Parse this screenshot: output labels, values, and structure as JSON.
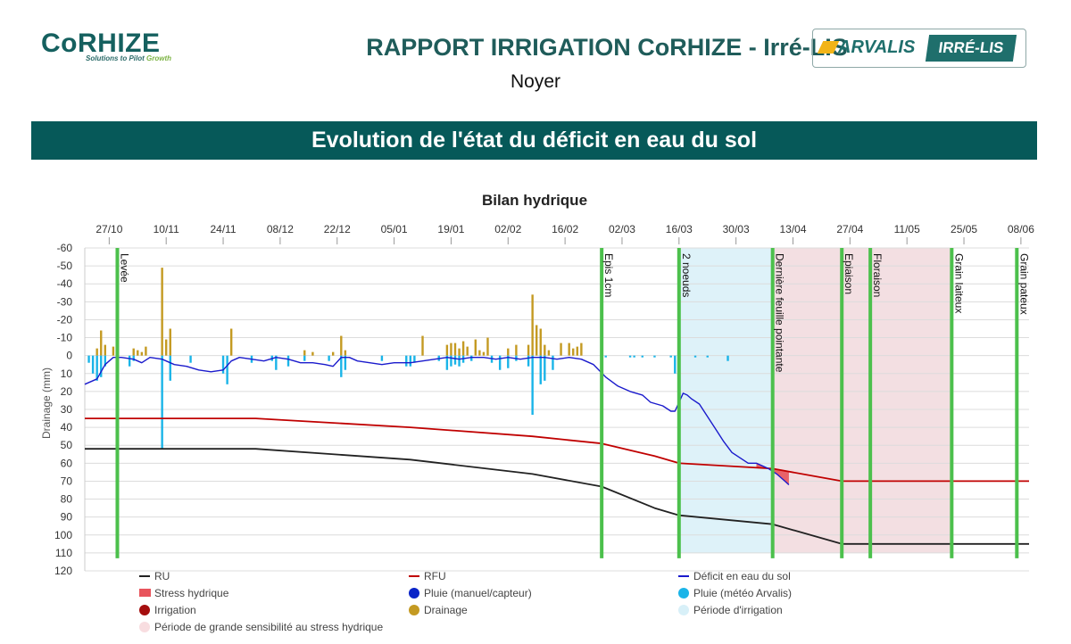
{
  "header": {
    "left_logo": "CoRHIZE",
    "left_tagline_pre": "Solutions to Pilot",
    "left_tagline_accent": "Growth",
    "title": "RAPPORT IRRIGATION CoRHIZE - Irré-LIS",
    "subtitle": "Noyer",
    "right_logo_arvalis": "ARVALIS",
    "right_logo_irrelis": "IRRÉ-LIS"
  },
  "banner": {
    "title": "Evolution de l'état du déficit en eau du sol"
  },
  "chart_data": {
    "type": "line",
    "title": "Bilan hydrique",
    "ylabel": "Drainage (mm)",
    "ylim": [
      -60,
      120
    ],
    "y_inverted": true,
    "yticks": [
      -60,
      -50,
      -40,
      -30,
      -20,
      -10,
      0,
      10,
      20,
      30,
      40,
      50,
      60,
      70,
      80,
      90,
      100,
      110,
      120
    ],
    "xlim_days": [
      0,
      232
    ],
    "x_ticks": [
      {
        "label": "27/10",
        "day": 6
      },
      {
        "label": "10/11",
        "day": 20
      },
      {
        "label": "24/11",
        "day": 34
      },
      {
        "label": "08/12",
        "day": 48
      },
      {
        "label": "22/12",
        "day": 62
      },
      {
        "label": "05/01",
        "day": 76
      },
      {
        "label": "19/01",
        "day": 90
      },
      {
        "label": "02/02",
        "day": 104
      },
      {
        "label": "16/02",
        "day": 118
      },
      {
        "label": "02/03",
        "day": 132
      },
      {
        "label": "16/03",
        "day": 146
      },
      {
        "label": "30/03",
        "day": 160
      },
      {
        "label": "13/04",
        "day": 174
      },
      {
        "label": "27/04",
        "day": 188
      },
      {
        "label": "11/05",
        "day": 202
      },
      {
        "label": "25/05",
        "day": 216
      },
      {
        "label": "08/06",
        "day": 230
      }
    ],
    "stages": [
      {
        "label": "Levée",
        "day": 8
      },
      {
        "label": "Epis 1cm",
        "day": 127
      },
      {
        "label": "2 noeuds",
        "day": 146
      },
      {
        "label": "Dernière feuille pointante",
        "day": 169
      },
      {
        "label": "Epiaison",
        "day": 186
      },
      {
        "label": "Floraison",
        "day": 193
      },
      {
        "label": "Grain laiteux",
        "day": 213
      },
      {
        "label": "Grain pateux",
        "day": 229
      }
    ],
    "periods": [
      {
        "name": "Période d'irrigation",
        "start": 146,
        "end": 169
      },
      {
        "name": "Période de grande sensibilité au stress hydrique",
        "start": 169,
        "end": 213
      }
    ],
    "series": [
      {
        "name": "RU",
        "color": "#222222",
        "points": [
          [
            0,
            52
          ],
          [
            42,
            52
          ],
          [
            80,
            58
          ],
          [
            110,
            66
          ],
          [
            127,
            73
          ],
          [
            140,
            85
          ],
          [
            146,
            89
          ],
          [
            169,
            94
          ],
          [
            186,
            105
          ],
          [
            232,
            105
          ]
        ]
      },
      {
        "name": "RFU",
        "color": "#c00000",
        "points": [
          [
            0,
            35
          ],
          [
            42,
            35
          ],
          [
            80,
            40
          ],
          [
            110,
            45
          ],
          [
            127,
            49
          ],
          [
            140,
            56
          ],
          [
            146,
            60
          ],
          [
            169,
            63
          ],
          [
            186,
            70
          ],
          [
            232,
            70
          ]
        ]
      },
      {
        "name": "Déficit en eau du sol",
        "color": "#1a1acc",
        "points": [
          [
            0,
            16
          ],
          [
            3,
            13
          ],
          [
            5,
            5
          ],
          [
            7,
            1
          ],
          [
            9,
            1
          ],
          [
            12,
            2
          ],
          [
            14,
            4
          ],
          [
            16,
            1
          ],
          [
            19,
            2
          ],
          [
            22,
            5
          ],
          [
            25,
            6
          ],
          [
            28,
            8
          ],
          [
            31,
            9
          ],
          [
            34,
            8
          ],
          [
            36,
            3
          ],
          [
            38,
            1
          ],
          [
            41,
            2
          ],
          [
            44,
            3
          ],
          [
            47,
            1
          ],
          [
            50,
            2
          ],
          [
            53,
            4
          ],
          [
            56,
            4
          ],
          [
            59,
            5
          ],
          [
            61,
            6
          ],
          [
            63,
            1
          ],
          [
            65,
            1
          ],
          [
            67,
            3
          ],
          [
            70,
            4
          ],
          [
            73,
            5
          ],
          [
            76,
            4
          ],
          [
            80,
            4
          ],
          [
            83,
            3
          ],
          [
            86,
            2
          ],
          [
            89,
            1
          ],
          [
            92,
            2
          ],
          [
            95,
            1
          ],
          [
            98,
            1
          ],
          [
            101,
            2
          ],
          [
            104,
            1
          ],
          [
            107,
            2
          ],
          [
            110,
            1
          ],
          [
            113,
            1
          ],
          [
            116,
            2
          ],
          [
            119,
            1
          ],
          [
            122,
            2
          ],
          [
            125,
            5
          ],
          [
            128,
            12
          ],
          [
            131,
            17
          ],
          [
            134,
            20
          ],
          [
            137,
            22
          ],
          [
            139,
            26
          ],
          [
            142,
            28
          ],
          [
            144,
            31
          ],
          [
            145,
            31
          ],
          [
            147,
            21
          ],
          [
            148,
            22
          ],
          [
            149,
            24
          ],
          [
            151,
            27
          ],
          [
            153,
            34
          ],
          [
            155,
            41
          ],
          [
            157,
            48
          ],
          [
            159,
            54
          ],
          [
            161,
            57
          ],
          [
            163,
            60
          ],
          [
            165,
            60
          ],
          [
            168,
            63
          ],
          [
            170,
            66
          ],
          [
            172,
            70
          ],
          [
            173,
            72
          ]
        ]
      }
    ],
    "stress_hydrique": {
      "color": "#e8545c",
      "range": [
        165,
        173
      ]
    },
    "rain_meteo_bars": [
      [
        1,
        4
      ],
      [
        2,
        10
      ],
      [
        3,
        14
      ],
      [
        4,
        12
      ],
      [
        5,
        6
      ],
      [
        11,
        6
      ],
      [
        12,
        3
      ],
      [
        19,
        52
      ],
      [
        21,
        14
      ],
      [
        26,
        4
      ],
      [
        34,
        10
      ],
      [
        35,
        16
      ],
      [
        41,
        4
      ],
      [
        46,
        3
      ],
      [
        47,
        8
      ],
      [
        50,
        6
      ],
      [
        54,
        3
      ],
      [
        60,
        3
      ],
      [
        63,
        12
      ],
      [
        64,
        8
      ],
      [
        73,
        3
      ],
      [
        79,
        6
      ],
      [
        80,
        6
      ],
      [
        81,
        4
      ],
      [
        87,
        3
      ],
      [
        89,
        8
      ],
      [
        90,
        6
      ],
      [
        91,
        5
      ],
      [
        92,
        6
      ],
      [
        93,
        4
      ],
      [
        95,
        3
      ],
      [
        100,
        4
      ],
      [
        102,
        8
      ],
      [
        104,
        7
      ],
      [
        106,
        3
      ],
      [
        109,
        6
      ],
      [
        110,
        33
      ],
      [
        112,
        16
      ],
      [
        113,
        14
      ],
      [
        115,
        8
      ],
      [
        128,
        1
      ],
      [
        134,
        1
      ],
      [
        135,
        1
      ],
      [
        137,
        1
      ],
      [
        140,
        1
      ],
      [
        144,
        1
      ],
      [
        145,
        10
      ],
      [
        150,
        1
      ],
      [
        153,
        1
      ],
      [
        158,
        3
      ]
    ],
    "drainage_bars": [
      [
        3,
        4
      ],
      [
        4,
        14
      ],
      [
        5,
        6
      ],
      [
        7,
        5
      ],
      [
        12,
        4
      ],
      [
        13,
        3
      ],
      [
        14,
        2
      ],
      [
        15,
        5
      ],
      [
        19,
        49
      ],
      [
        20,
        9
      ],
      [
        21,
        15
      ],
      [
        36,
        15
      ],
      [
        54,
        3
      ],
      [
        56,
        2
      ],
      [
        61,
        2
      ],
      [
        63,
        11
      ],
      [
        64,
        3
      ],
      [
        83,
        11
      ],
      [
        89,
        6
      ],
      [
        90,
        7
      ],
      [
        91,
        7
      ],
      [
        92,
        4
      ],
      [
        93,
        8
      ],
      [
        94,
        5
      ],
      [
        96,
        9
      ],
      [
        97,
        3
      ],
      [
        98,
        2
      ],
      [
        99,
        10
      ],
      [
        104,
        4
      ],
      [
        106,
        6
      ],
      [
        109,
        6
      ],
      [
        110,
        34
      ],
      [
        111,
        17
      ],
      [
        112,
        15
      ],
      [
        113,
        6
      ],
      [
        114,
        3
      ],
      [
        117,
        7
      ],
      [
        119,
        7
      ],
      [
        120,
        4
      ],
      [
        121,
        5
      ],
      [
        122,
        7
      ]
    ],
    "legend": [
      {
        "label": "RU",
        "kind": "line",
        "color": "#222222"
      },
      {
        "label": "RFU",
        "kind": "line",
        "color": "#c00000"
      },
      {
        "label": "Déficit en eau du sol",
        "kind": "line",
        "color": "#1a1acc"
      },
      {
        "label": "Stress hydrique",
        "kind": "rect",
        "color": "#e8545c"
      },
      {
        "label": "Pluie (manuel/capteur)",
        "kind": "dot",
        "color": "#0a24c8"
      },
      {
        "label": "Pluie (météo Arvalis)",
        "kind": "dot",
        "color": "#1ab4e8"
      },
      {
        "label": "Irrigation",
        "kind": "dot",
        "color": "#a50e0e"
      },
      {
        "label": "Drainage",
        "kind": "dot",
        "color": "#c49a22"
      },
      {
        "label": "Période d'irrigation",
        "kind": "dot",
        "color": "#d8f0f8"
      },
      {
        "label": "Période de grande sensibilité au stress hydrique",
        "kind": "dot",
        "color": "#f8dde0"
      }
    ],
    "colors": {
      "period_irrigation": "#def2f9",
      "period_sensibilite": "#f3dfe2",
      "stage_line": "#4cc04c",
      "drainage": "#c49a22",
      "rain_meteo": "#1ab4e8"
    }
  }
}
